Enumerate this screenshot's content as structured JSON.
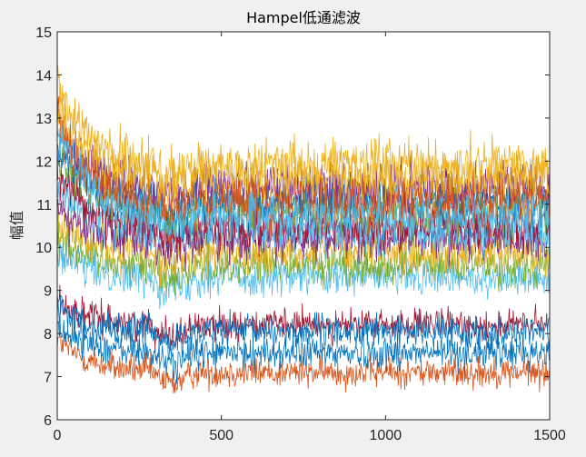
{
  "chart_data": {
    "type": "line",
    "title": "Hampel低通滤波",
    "xlabel": "",
    "ylabel": "幅值",
    "xlim": [
      0,
      1500
    ],
    "ylim": [
      6,
      15
    ],
    "xticks": [
      "0",
      "500",
      "1000",
      "1500"
    ],
    "yticks": [
      "6",
      "7",
      "8",
      "9",
      "10",
      "11",
      "12",
      "13",
      "14",
      "15"
    ],
    "grid": false,
    "legend": "none",
    "n_points_per_series": 1500,
    "series": [
      {
        "color": "#D95319",
        "base": 7.1,
        "noise": 0.55,
        "start": 7.9
      },
      {
        "color": "#0072BD",
        "base": 7.55,
        "noise": 0.6,
        "start": 8.2
      },
      {
        "color": "#A2142F",
        "base": 8.2,
        "noise": 0.55,
        "start": 8.8
      },
      {
        "color": "#0072BD",
        "base": 8.05,
        "noise": 0.6,
        "start": 8.6
      },
      {
        "color": "#4DBEEE",
        "base": 9.3,
        "noise": 0.7,
        "start": 9.9
      },
      {
        "color": "#77AC30",
        "base": 9.6,
        "noise": 0.75,
        "start": 10.3
      },
      {
        "color": "#EDB120",
        "base": 9.9,
        "noise": 0.8,
        "start": 10.6
      },
      {
        "color": "#7E2F8E",
        "base": 10.2,
        "noise": 0.8,
        "start": 11.0
      },
      {
        "color": "#4DBEEE",
        "base": 10.4,
        "noise": 0.8,
        "start": 11.5
      },
      {
        "color": "#A2142F",
        "base": 10.5,
        "noise": 0.85,
        "start": 11.8
      },
      {
        "color": "#77AC30",
        "base": 10.9,
        "noise": 0.85,
        "start": 12.2
      },
      {
        "color": "#0072BD",
        "base": 11.1,
        "noise": 0.9,
        "start": 12.4
      },
      {
        "color": "#7E2F8E",
        "base": 11.4,
        "noise": 0.9,
        "start": 12.9
      },
      {
        "color": "#EDB120",
        "base": 11.6,
        "noise": 0.95,
        "start": 13.3
      },
      {
        "color": "#D95319",
        "base": 11.0,
        "noise": 0.95,
        "start": 13.0
      },
      {
        "color": "#4DBEEE",
        "base": 10.7,
        "noise": 0.85,
        "start": 12.8
      },
      {
        "color": "#EDB120",
        "base": 11.9,
        "noise": 0.9,
        "start": 13.8
      }
    ]
  }
}
